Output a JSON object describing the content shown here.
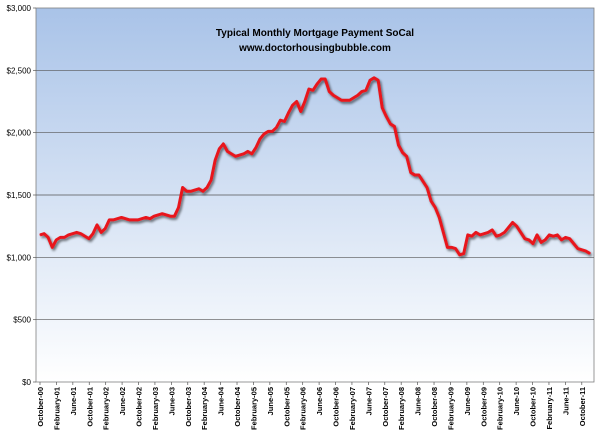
{
  "chart_data": {
    "type": "line",
    "title": "Typical Monthly Mortgage Payment  SoCal",
    "subtitle": "www.doctorhousingbubble.com",
    "xlabel": "",
    "ylabel": "",
    "ylim": [
      0,
      3000
    ],
    "y_ticks": [
      "$0",
      "$500",
      "$1,000",
      "$1,500",
      "$2,000",
      "$2,500",
      "$3,000"
    ],
    "y_tick_values": [
      0,
      500,
      1000,
      1500,
      2000,
      2500,
      3000
    ],
    "x_tick_labels": [
      "October-00",
      "February-01",
      "June-01",
      "October-01",
      "February-02",
      "June-02",
      "October-02",
      "February-03",
      "June-03",
      "October-03",
      "February-04",
      "June-04",
      "October-04",
      "February-05",
      "June-05",
      "October-05",
      "February-06",
      "June-06",
      "October-06",
      "February-07",
      "June-07",
      "October-07",
      "February-08",
      "June-08",
      "October-08",
      "February-09",
      "June-09",
      "October-09",
      "February-10",
      "June-10",
      "October-10",
      "February-11",
      "June-11",
      "October-11"
    ],
    "grid": true,
    "legend": "none",
    "line_color": "#e8141c",
    "plot_background_top": "#a9c3e8",
    "plot_background_bottom": "#ffffff",
    "series": [
      {
        "values": [
          1180,
          1190,
          1160,
          1080,
          1140,
          1160,
          1160,
          1180,
          1190,
          1200,
          1190,
          1170,
          1150,
          1190,
          1260,
          1200,
          1230,
          1300,
          1300,
          1310,
          1320,
          1310,
          1300,
          1300,
          1300,
          1310,
          1320,
          1310,
          1330,
          1340,
          1350,
          1340,
          1330,
          1330,
          1400,
          1560,
          1530,
          1530,
          1540,
          1550,
          1530,
          1560,
          1620,
          1780,
          1870,
          1910,
          1850,
          1830,
          1810,
          1820,
          1830,
          1850,
          1830,
          1880,
          1950,
          1990,
          2010,
          2010,
          2040,
          2100,
          2090,
          2160,
          2220,
          2250,
          2170,
          2250,
          2350,
          2340,
          2390,
          2430,
          2430,
          2330,
          2300,
          2280,
          2260,
          2260,
          2260,
          2280,
          2300,
          2330,
          2340,
          2420,
          2440,
          2420,
          2200,
          2130,
          2070,
          2050,
          1900,
          1840,
          1810,
          1680,
          1660,
          1660,
          1610,
          1560,
          1450,
          1400,
          1320,
          1200,
          1080,
          1080,
          1070,
          1020,
          1030,
          1180,
          1170,
          1200,
          1180,
          1190,
          1200,
          1220,
          1170,
          1180,
          1200,
          1240,
          1280,
          1250,
          1200,
          1150,
          1140,
          1110,
          1180,
          1120,
          1140,
          1180,
          1170,
          1180,
          1140,
          1160,
          1150,
          1110,
          1070,
          1060,
          1050,
          1030
        ]
      }
    ]
  }
}
